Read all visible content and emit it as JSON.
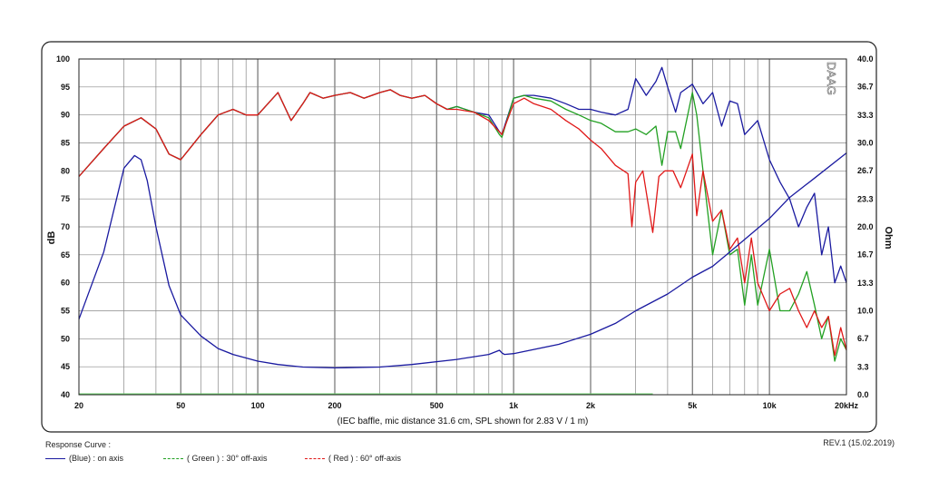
{
  "chart_data": {
    "type": "line",
    "xscale": "log",
    "xlim": [
      20,
      20000
    ],
    "x_ticks": [
      20,
      50,
      100,
      200,
      500,
      1000,
      2000,
      5000,
      10000,
      20000
    ],
    "x_tick_labels": [
      "20",
      "50",
      "100",
      "200",
      "500",
      "1k",
      "2k",
      "5k",
      "10k",
      "20kHz"
    ],
    "ylim": [
      40,
      100
    ],
    "y_ticks": [
      40,
      45,
      50,
      55,
      60,
      65,
      70,
      75,
      80,
      85,
      90,
      95,
      100
    ],
    "y_tick_labels": [
      "40",
      "45",
      "50",
      "55",
      "60",
      "65",
      "70",
      "75",
      "80",
      "85",
      "90",
      "95",
      "100"
    ],
    "ylabel": "dB",
    "y2lim": [
      0,
      40
    ],
    "y2_ticks": [
      0,
      3.3,
      6.7,
      10,
      13.3,
      16.7,
      20,
      23.3,
      26.7,
      30,
      33.3,
      36.7,
      40
    ],
    "y2_tick_labels": [
      "0.0",
      "3.3",
      "6.7",
      "10.0",
      "13.3",
      "16.7",
      "20.0",
      "23.3",
      "26.7",
      "30.0",
      "33.3",
      "36.7",
      "40.0"
    ],
    "y2label": "Ohm",
    "xlabel": "(IEC baffle, mic distance 31.6 cm, SPL shown for 2.83 V / 1 m)",
    "watermark": "DAAG",
    "grid": true,
    "series": [
      {
        "name": "(Blue) : on axis",
        "color": "#1a1aa0",
        "axis": "left",
        "x": [
          20,
          25,
          30,
          35,
          40,
          45,
          50,
          60,
          70,
          80,
          90,
          100,
          120,
          135,
          150,
          160,
          180,
          200,
          230,
          260,
          300,
          330,
          360,
          400,
          450,
          500,
          550,
          600,
          700,
          800,
          880,
          900,
          1000,
          1100,
          1200,
          1400,
          1600,
          1800,
          2000,
          2200,
          2500,
          2800,
          3000,
          3300,
          3600,
          3800,
          4000,
          4300,
          4500,
          5000,
          5500,
          6000,
          6500,
          7000,
          7500,
          8000,
          9000,
          10000,
          11000,
          12000,
          13000,
          14000,
          15000,
          16000,
          17000,
          18000,
          19000,
          20000
        ],
        "y": [
          79,
          84,
          88,
          89.5,
          87.5,
          83,
          82,
          86.5,
          90,
          91,
          90,
          90,
          94,
          89,
          92,
          94,
          93,
          93.5,
          94,
          93,
          94,
          94.5,
          93.5,
          93,
          93.5,
          92,
          91,
          91.5,
          90.5,
          90,
          87,
          86.5,
          93,
          93.5,
          93.5,
          93,
          92,
          91,
          91,
          90.5,
          90,
          91,
          96.5,
          93.5,
          96,
          98.5,
          95,
          90.5,
          94,
          95.5,
          92,
          94,
          88,
          92.5,
          92,
          86.5,
          89,
          82,
          78,
          75,
          70,
          73.5,
          76,
          65,
          70,
          60,
          63,
          60
        ]
      },
      {
        "name": "( Green ) : 30° off-axis",
        "color": "#22a022",
        "axis": "left",
        "x": [
          20,
          25,
          30,
          35,
          40,
          45,
          50,
          60,
          70,
          80,
          90,
          100,
          120,
          135,
          150,
          160,
          180,
          200,
          230,
          260,
          300,
          330,
          360,
          400,
          450,
          500,
          550,
          600,
          700,
          800,
          880,
          900,
          1000,
          1100,
          1200,
          1400,
          1600,
          1800,
          2000,
          2200,
          2500,
          2800,
          3000,
          3300,
          3600,
          3800,
          4000,
          4300,
          4500,
          5000,
          5200,
          5500,
          6000,
          6500,
          7000,
          7500,
          8000,
          8500,
          9000,
          10000,
          11000,
          12000,
          13000,
          14000,
          15000,
          16000,
          17000,
          18000,
          19000,
          20000
        ],
        "y": [
          79,
          84,
          88,
          89.5,
          87.5,
          83,
          82,
          86.5,
          90,
          91,
          90,
          90,
          94,
          89,
          92,
          94,
          93,
          93.5,
          94,
          93,
          94,
          94.5,
          93.5,
          93,
          93.5,
          92,
          91,
          91.5,
          90.5,
          89.5,
          86.5,
          86,
          93,
          93.5,
          93,
          92.5,
          91,
          90,
          89,
          88.5,
          87,
          87,
          87.5,
          86.5,
          88,
          81,
          87,
          87,
          84,
          94,
          90,
          80,
          65,
          73,
          65,
          66,
          56,
          65,
          56,
          66,
          55,
          55,
          58,
          62,
          56,
          50,
          54,
          46,
          50,
          48
        ]
      },
      {
        "name": "( Red ) : 60° off-axis",
        "color": "#e01818",
        "axis": "left",
        "x": [
          20,
          25,
          30,
          35,
          40,
          45,
          50,
          60,
          70,
          80,
          90,
          100,
          120,
          135,
          150,
          160,
          180,
          200,
          230,
          260,
          300,
          330,
          360,
          400,
          450,
          500,
          550,
          600,
          700,
          800,
          880,
          900,
          1000,
          1100,
          1200,
          1400,
          1600,
          1800,
          2000,
          2200,
          2500,
          2800,
          2900,
          3000,
          3200,
          3500,
          3700,
          3900,
          4200,
          4500,
          5000,
          5200,
          5500,
          6000,
          6500,
          7000,
          7500,
          8000,
          8500,
          9000,
          10000,
          11000,
          12000,
          13000,
          14000,
          15000,
          16000,
          17000,
          18000,
          19000,
          20000
        ],
        "y": [
          79,
          84,
          88,
          89.5,
          87.5,
          83,
          82,
          86.5,
          90,
          91,
          90,
          90,
          94,
          89,
          92,
          94,
          93,
          93.5,
          94,
          93,
          94,
          94.5,
          93.5,
          93,
          93.5,
          92,
          91,
          91,
          90.5,
          89,
          87,
          86.5,
          92,
          93,
          92,
          91,
          89,
          87.5,
          85.5,
          84,
          81,
          79.5,
          70,
          78,
          80,
          69,
          79,
          80,
          80,
          77,
          83,
          72,
          80,
          71,
          73,
          66,
          68,
          60,
          68,
          60,
          55,
          58,
          59,
          55,
          52,
          55,
          52,
          54,
          47,
          52,
          48
        ]
      },
      {
        "name": "Impedance",
        "color": "#1a1aa0",
        "axis": "right",
        "x": [
          20,
          25,
          30,
          33,
          35,
          37,
          40,
          45,
          50,
          60,
          70,
          80,
          100,
          120,
          150,
          200,
          300,
          400,
          600,
          800,
          880,
          900,
          920,
          1000,
          1500,
          2000,
          2500,
          3000,
          4000,
          5000,
          6000,
          7000,
          8000,
          10000,
          12000,
          15000,
          20000
        ],
        "y": [
          9,
          17,
          27,
          28.5,
          28,
          25.5,
          20,
          13,
          9.5,
          7,
          5.5,
          4.8,
          4,
          3.6,
          3.3,
          3.2,
          3.3,
          3.6,
          4.2,
          4.8,
          5.3,
          5.0,
          4.8,
          4.9,
          6,
          7.2,
          8.5,
          10,
          12,
          14,
          15.3,
          17,
          18.5,
          21,
          23.5,
          25.8,
          28.8
        ]
      }
    ]
  },
  "chart_title": "",
  "footer": {
    "legend_title": "Response Curve :",
    "legend": [
      {
        "label": "(Blue)  : on axis",
        "color": "#1a1aa0",
        "style": "solid"
      },
      {
        "label": "( Green ) : 30° off-axis",
        "color": "#22a022",
        "style": "dashed"
      },
      {
        "label": "( Red ) : 60° off-axis",
        "color": "#e01818",
        "style": "dashed"
      }
    ],
    "revision": "REV.1 (15.02.2019)"
  }
}
